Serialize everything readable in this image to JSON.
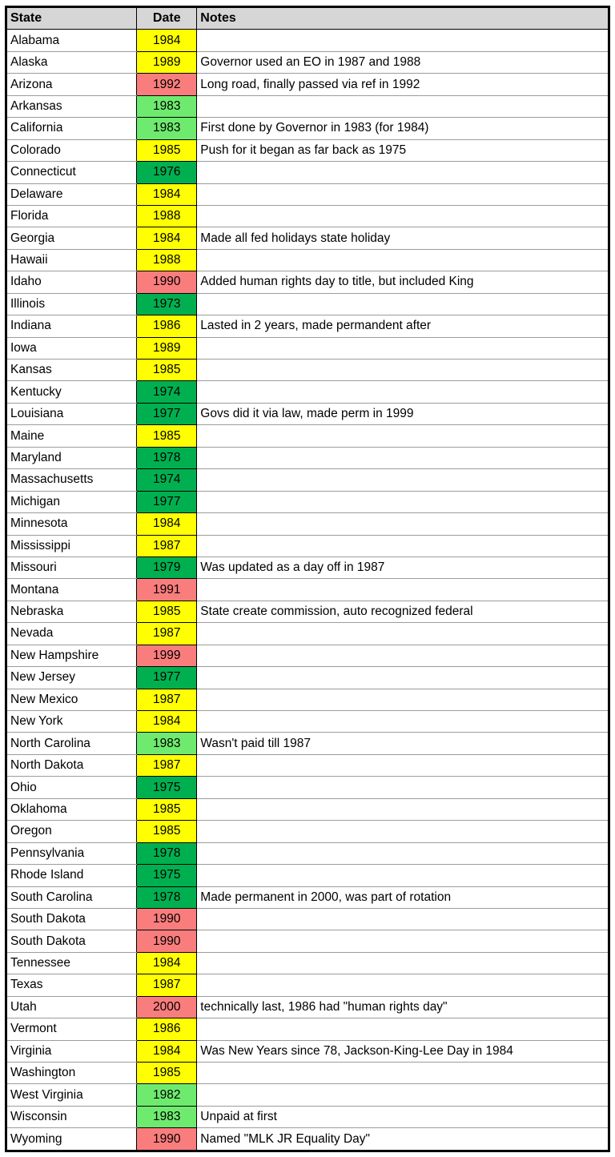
{
  "table": {
    "columns": [
      "State",
      "Date",
      "Notes"
    ],
    "colors": {
      "header_bg": "#D6D6D6",
      "yellow": "#FFFF00",
      "light_green": "#6EEB6E",
      "dark_green": "#00B050",
      "red": "#FA7D7D",
      "border_dark": "#000000",
      "border_light": "#9C9C9C"
    },
    "rows": [
      {
        "state": "Alabama",
        "date": "1984",
        "color": "yellow",
        "notes": ""
      },
      {
        "state": "Alaska",
        "date": "1989",
        "color": "yellow",
        "notes": "Governor used an EO in 1987 and 1988"
      },
      {
        "state": "Arizona",
        "date": "1992",
        "color": "red",
        "notes": "Long road, finally passed via ref in 1992"
      },
      {
        "state": "Arkansas",
        "date": "1983",
        "color": "light_green",
        "notes": ""
      },
      {
        "state": "California",
        "date": "1983",
        "color": "light_green",
        "notes": "First done by Governor in 1983 (for 1984)"
      },
      {
        "state": "Colorado",
        "date": "1985",
        "color": "yellow",
        "notes": "Push for it began as far back as 1975"
      },
      {
        "state": "Connecticut",
        "date": "1976",
        "color": "dark_green",
        "notes": ""
      },
      {
        "state": "Delaware",
        "date": "1984",
        "color": "yellow",
        "notes": ""
      },
      {
        "state": "Florida",
        "date": "1988",
        "color": "yellow",
        "notes": ""
      },
      {
        "state": "Georgia",
        "date": "1984",
        "color": "yellow",
        "notes": "Made all fed holidays state holiday"
      },
      {
        "state": "Hawaii",
        "date": "1988",
        "color": "yellow",
        "notes": ""
      },
      {
        "state": "Idaho",
        "date": "1990",
        "color": "red",
        "notes": "Added human rights day to title, but included King"
      },
      {
        "state": "Illinois",
        "date": "1973",
        "color": "dark_green",
        "notes": ""
      },
      {
        "state": "Indiana",
        "date": "1986",
        "color": "yellow",
        "notes": "Lasted in 2 years, made permandent after"
      },
      {
        "state": "Iowa",
        "date": "1989",
        "color": "yellow",
        "notes": ""
      },
      {
        "state": "Kansas",
        "date": "1985",
        "color": "yellow",
        "notes": ""
      },
      {
        "state": "Kentucky",
        "date": "1974",
        "color": "dark_green",
        "notes": ""
      },
      {
        "state": "Louisiana",
        "date": "1977",
        "color": "dark_green",
        "notes": "Govs did it via law, made perm in 1999"
      },
      {
        "state": "Maine",
        "date": "1985",
        "color": "yellow",
        "notes": ""
      },
      {
        "state": "Maryland",
        "date": "1978",
        "color": "dark_green",
        "notes": ""
      },
      {
        "state": "Massachusetts",
        "date": "1974",
        "color": "dark_green",
        "notes": ""
      },
      {
        "state": "Michigan",
        "date": "1977",
        "color": "dark_green",
        "notes": ""
      },
      {
        "state": "Minnesota",
        "date": "1984",
        "color": "yellow",
        "notes": ""
      },
      {
        "state": "Mississippi",
        "date": "1987",
        "color": "yellow",
        "notes": ""
      },
      {
        "state": "Missouri",
        "date": "1979",
        "color": "dark_green",
        "notes": "Was updated as a day off in 1987"
      },
      {
        "state": "Montana",
        "date": "1991",
        "color": "red",
        "notes": ""
      },
      {
        "state": "Nebraska",
        "date": "1985",
        "color": "yellow",
        "notes": "State create commission, auto recognized federal"
      },
      {
        "state": "Nevada",
        "date": "1987",
        "color": "yellow",
        "notes": ""
      },
      {
        "state": "New Hampshire",
        "date": "1999",
        "color": "red",
        "notes": ""
      },
      {
        "state": "New Jersey",
        "date": "1977",
        "color": "dark_green",
        "notes": ""
      },
      {
        "state": "New Mexico",
        "date": "1987",
        "color": "yellow",
        "notes": ""
      },
      {
        "state": "New York",
        "date": "1984",
        "color": "yellow",
        "notes": ""
      },
      {
        "state": "North Carolina",
        "date": "1983",
        "color": "light_green",
        "notes": "Wasn't paid till 1987"
      },
      {
        "state": "North Dakota",
        "date": "1987",
        "color": "yellow",
        "notes": ""
      },
      {
        "state": "Ohio",
        "date": "1975",
        "color": "dark_green",
        "notes": ""
      },
      {
        "state": "Oklahoma",
        "date": "1985",
        "color": "yellow",
        "notes": ""
      },
      {
        "state": "Oregon",
        "date": "1985",
        "color": "yellow",
        "notes": ""
      },
      {
        "state": "Pennsylvania",
        "date": "1978",
        "color": "dark_green",
        "notes": ""
      },
      {
        "state": "Rhode Island",
        "date": "1975",
        "color": "dark_green",
        "notes": ""
      },
      {
        "state": "South Carolina",
        "date": "1978",
        "color": "dark_green",
        "notes": "Made permanent in 2000, was part of rotation"
      },
      {
        "state": "South Dakota",
        "date": "1990",
        "color": "red",
        "notes": ""
      },
      {
        "state": "South Dakota",
        "date": "1990",
        "color": "red",
        "notes": ""
      },
      {
        "state": "Tennessee",
        "date": "1984",
        "color": "yellow",
        "notes": ""
      },
      {
        "state": "Texas",
        "date": "1987",
        "color": "yellow",
        "notes": ""
      },
      {
        "state": "Utah",
        "date": "2000",
        "color": "red",
        "notes": "technically last, 1986 had \"human rights day\""
      },
      {
        "state": "Vermont",
        "date": "1986",
        "color": "yellow",
        "notes": ""
      },
      {
        "state": "Virginia",
        "date": "1984",
        "color": "yellow",
        "notes": "Was New Years since 78, Jackson-King-Lee Day in 1984"
      },
      {
        "state": "Washington",
        "date": "1985",
        "color": "yellow",
        "notes": ""
      },
      {
        "state": "West Virginia",
        "date": "1982",
        "color": "light_green",
        "notes": ""
      },
      {
        "state": "Wisconsin",
        "date": "1983",
        "color": "light_green",
        "notes": "Unpaid at first"
      },
      {
        "state": "Wyoming",
        "date": "1990",
        "color": "red",
        "notes": "Named \"MLK JR Equality Day\""
      }
    ]
  }
}
